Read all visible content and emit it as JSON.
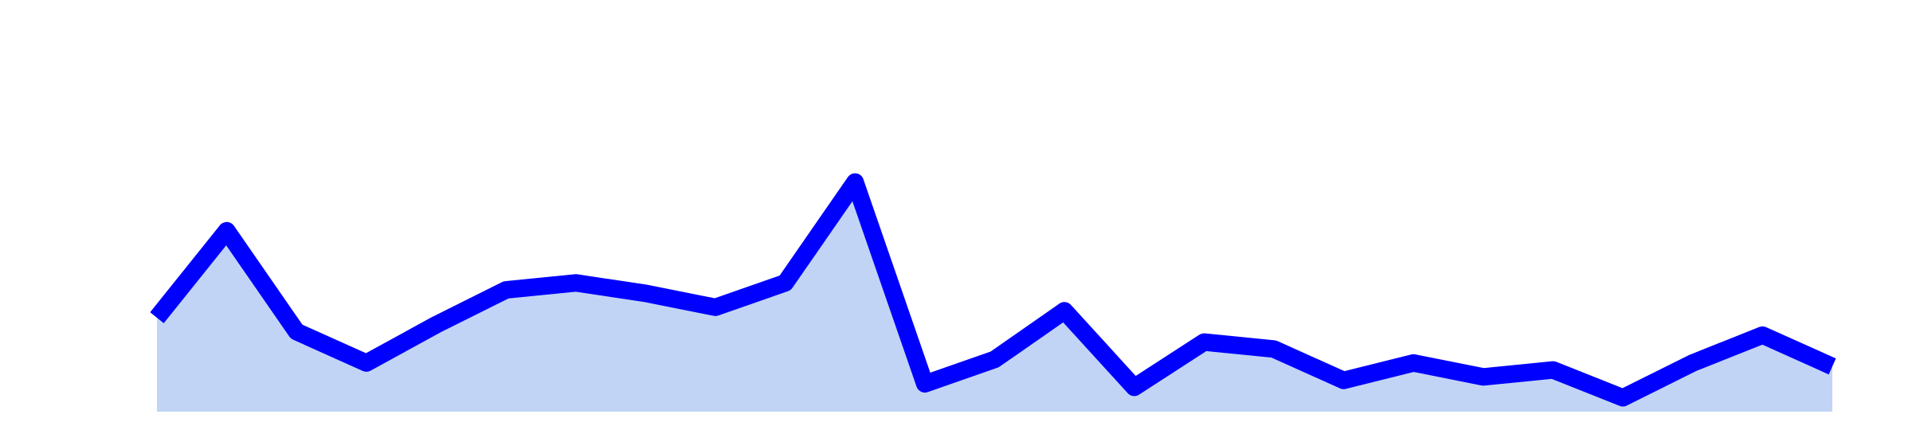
{
  "chart_data": {
    "type": "area",
    "title": "",
    "xlabel": "",
    "ylabel": "",
    "grid": false,
    "legend": "none",
    "ylim": [
      0,
      100
    ],
    "x": [
      1,
      2,
      3,
      4,
      5,
      6,
      7,
      8,
      9,
      10,
      11,
      12,
      13,
      14,
      15,
      16,
      17,
      18,
      19,
      20,
      21,
      22,
      23,
      24,
      25
    ],
    "series": [
      {
        "values": [
          27,
          52,
          23,
          14,
          25,
          35,
          37,
          34,
          30,
          37,
          66,
          8,
          15,
          29,
          7,
          20,
          18,
          9,
          14,
          10,
          12,
          4,
          14,
          22,
          13
        ],
        "line_color": "#0000ff",
        "fill_color": "#c2d4f5"
      }
    ]
  }
}
